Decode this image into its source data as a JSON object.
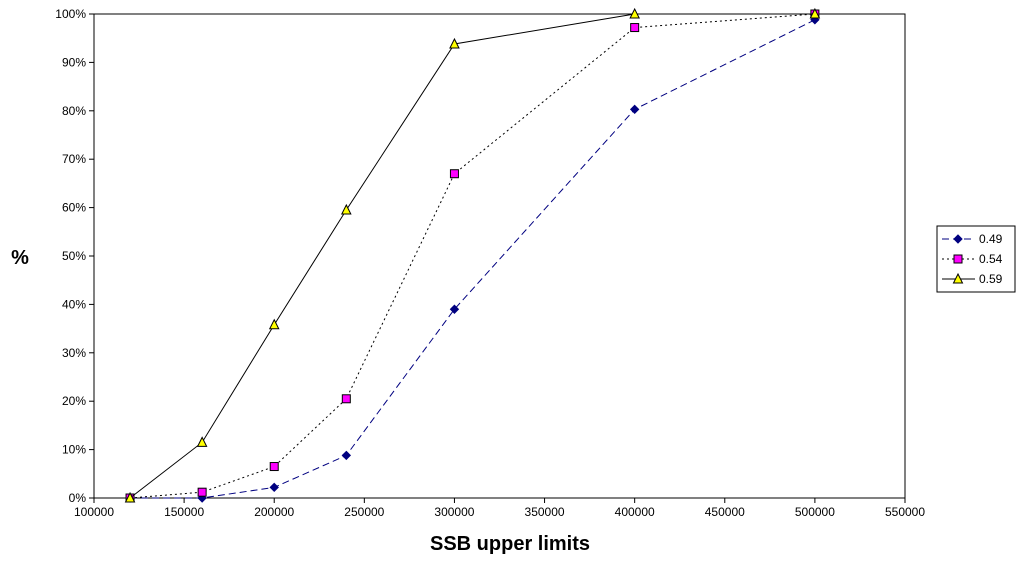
{
  "chart_data": {
    "type": "line",
    "title": "",
    "xlabel": "SSB upper limits",
    "ylabel": "%",
    "xlim": [
      100000,
      550000
    ],
    "ylim": [
      0,
      1
    ],
    "x_ticks": [
      100000,
      150000,
      200000,
      250000,
      300000,
      350000,
      400000,
      450000,
      500000,
      550000
    ],
    "x_tick_labels": [
      "100000",
      "150000",
      "200000",
      "250000",
      "300000",
      "350000",
      "400000",
      "450000",
      "500000",
      "550000"
    ],
    "y_ticks": [
      0,
      0.1,
      0.2,
      0.3,
      0.4,
      0.5,
      0.6,
      0.7,
      0.8,
      0.9,
      1.0
    ],
    "y_tick_labels": [
      "0%",
      "10%",
      "20%",
      "30%",
      "40%",
      "50%",
      "60%",
      "70%",
      "80%",
      "90%",
      "100%"
    ],
    "grid": false,
    "legend_position": "right",
    "x": [
      120000,
      160000,
      200000,
      240000,
      300000,
      400000,
      500000
    ],
    "series": [
      {
        "name": "0.49",
        "values": [
          0.0,
          0.0,
          0.022,
          0.088,
          0.39,
          0.803,
          0.988
        ],
        "color": "#000080",
        "line_style": "dashed",
        "marker": "diamond",
        "marker_color": "#000080"
      },
      {
        "name": "0.54",
        "values": [
          0.0,
          0.012,
          0.065,
          0.205,
          0.67,
          0.972,
          1.0
        ],
        "color": "#000000",
        "line_style": "dotted",
        "marker": "square",
        "marker_color": "#ff00ff"
      },
      {
        "name": "0.59",
        "values": [
          0.0,
          0.115,
          0.358,
          0.595,
          0.938,
          1.0,
          1.0
        ],
        "color": "#000000",
        "line_style": "solid",
        "marker": "triangle",
        "marker_color": "#ffff00"
      }
    ]
  }
}
